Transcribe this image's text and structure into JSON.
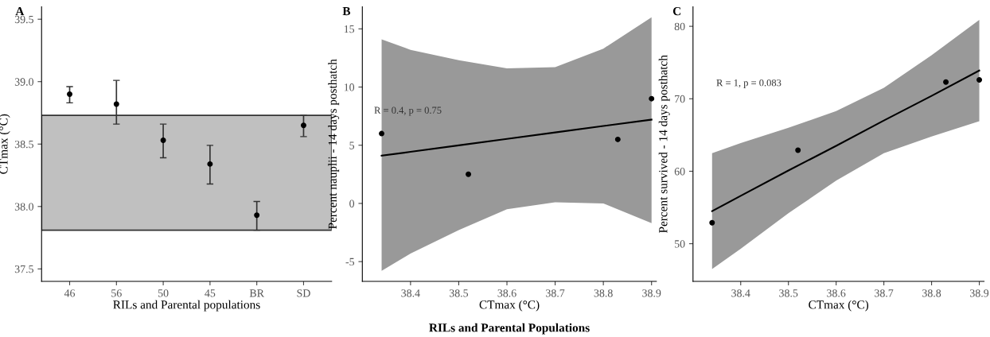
{
  "chart_data": [
    {
      "type": "scatter",
      "title": "A",
      "xlabel": "RILs and Parental populations",
      "ylabel": "CTmax (°C)",
      "categories": [
        "46",
        "56",
        "50",
        "45",
        "BR",
        "SD"
      ],
      "values": [
        38.9,
        38.82,
        38.53,
        38.34,
        37.93,
        38.65
      ],
      "errors": [
        [
          38.83,
          38.96
        ],
        [
          38.66,
          39.01
        ],
        [
          38.39,
          38.66
        ],
        [
          38.18,
          38.49
        ],
        [
          37.81,
          38.04
        ],
        [
          38.56,
          38.73
        ]
      ],
      "color": "#000000",
      "marker": "circle",
      "ylim": [
        37.4,
        39.6
      ],
      "yticks": [
        37.5,
        {
          "value": 38,
          "label": "38.0"
        },
        38.5,
        {
          "value": 39,
          "label": "39.0"
        },
        39.5
      ],
      "bands": [
        {
          "axis": "y",
          "from": 37.81,
          "to": 38.73,
          "color": "#c0c0c0"
        }
      ],
      "grid": false
    },
    {
      "type": "scatter",
      "title": "B",
      "xlabel": "CTmax (°C)",
      "ylabel": "Percent nauplii - 14 days posthatch",
      "annotations": [
        "R = 0.4, p = 0.75",
        "RILs and Parental Populations"
      ],
      "xlim": [
        38.3,
        38.91
      ],
      "xticks": [
        38.4,
        38.5,
        38.6,
        38.7,
        38.8,
        38.9
      ],
      "ylim": [
        -6.7,
        16.9
      ],
      "yticks": [
        -5,
        0,
        5,
        10,
        15
      ],
      "grid": false,
      "series": [
        {
          "type": "scatter",
          "marker": "circle",
          "color": "#000000",
          "x": [
            38.34,
            38.52,
            38.83,
            38.9
          ],
          "values": [
            6.0,
            2.5,
            5.5,
            9.0
          ]
        },
        {
          "type": "line",
          "color": "#000000",
          "x": [
            38.34,
            38.4,
            38.5,
            38.6,
            38.7,
            38.8,
            38.9
          ],
          "values": [
            4.1,
            4.43,
            4.99,
            5.54,
            6.1,
            6.65,
            7.2
          ],
          "lower": [
            -5.8,
            -4.3,
            -2.3,
            -0.5,
            0.1,
            0.0,
            -1.7
          ],
          "upper": [
            14.1,
            13.2,
            12.3,
            11.6,
            11.7,
            13.3,
            16.0
          ]
        }
      ]
    },
    {
      "type": "scatter",
      "title": "C",
      "xlabel": "CTmax (°C)",
      "ylabel": "Percent survived - 14 days posthatch",
      "annotations": [
        "R = 1, p = 0.083"
      ],
      "xlim": [
        38.3,
        38.91
      ],
      "xticks": [
        38.4,
        38.5,
        38.6,
        38.7,
        38.8,
        38.9
      ],
      "ylim": [
        44.8,
        82.7
      ],
      "yticks": [
        50,
        60,
        70,
        80
      ],
      "grid": false,
      "series": [
        {
          "type": "scatter",
          "marker": "circle",
          "color": "#000000",
          "x": [
            38.34,
            38.52,
            38.83,
            38.9
          ],
          "values": [
            52.9,
            62.9,
            72.3,
            72.6
          ]
        },
        {
          "type": "line",
          "color": "#000000",
          "x": [
            38.34,
            38.4,
            38.5,
            38.6,
            38.7,
            38.8,
            38.9
          ],
          "values": [
            54.5,
            56.6,
            60.1,
            63.5,
            67.0,
            70.4,
            73.9
          ],
          "lower": [
            46.5,
            49.3,
            54.2,
            58.7,
            62.5,
            64.8,
            66.9
          ],
          "upper": [
            62.5,
            63.9,
            66.0,
            68.3,
            71.5,
            76.0,
            80.9
          ]
        }
      ]
    }
  ]
}
